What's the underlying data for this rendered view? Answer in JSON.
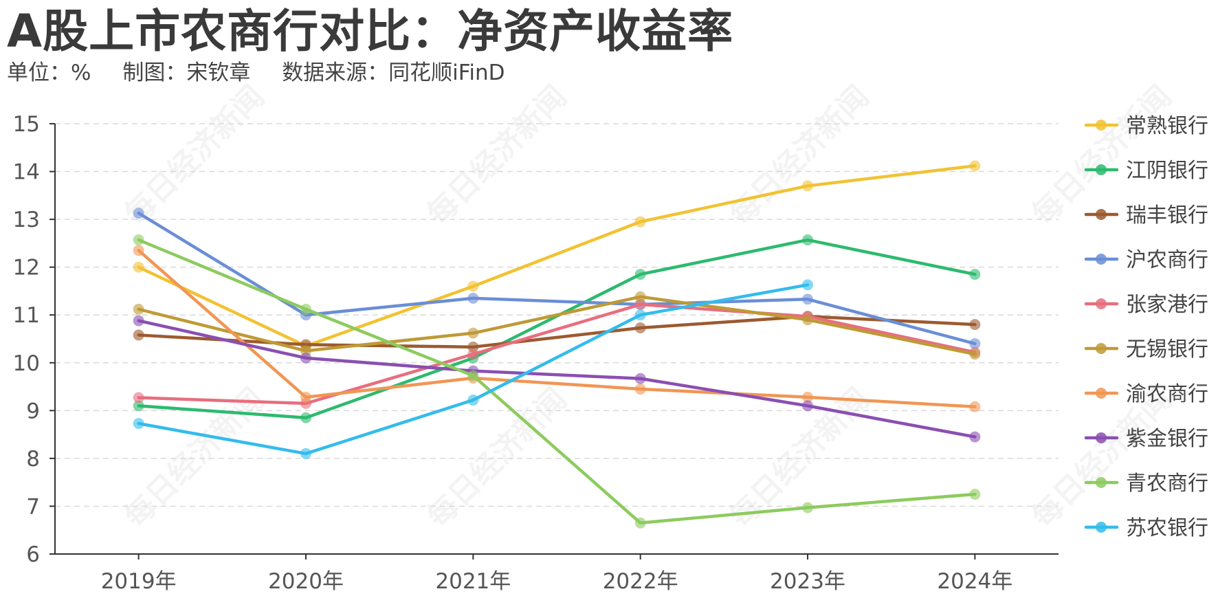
{
  "header": {
    "title": "A股上市农商行对比：净资产收益率",
    "unit": "单位：%",
    "author": "制图：宋钦章",
    "source": "数据来源：同花顺iFinD"
  },
  "watermark_text": "每日经济新闻",
  "chart_data": {
    "type": "line",
    "title": "A股上市农商行对比：净资产收益率",
    "xlabel": "",
    "ylabel": "",
    "categories": [
      "2019年",
      "2020年",
      "2021年",
      "2022年",
      "2023年",
      "2024年"
    ],
    "ylim": [
      6,
      15
    ],
    "yticks": [
      6,
      7,
      8,
      9,
      10,
      11,
      12,
      13,
      14,
      15
    ],
    "grid": true,
    "legend_position": "right",
    "series": [
      {
        "name": "常熟银行",
        "color": "#f2c232",
        "values": [
          12.0,
          10.35,
          11.6,
          12.95,
          13.7,
          14.12
        ]
      },
      {
        "name": "江阴银行",
        "color": "#2dba6e",
        "values": [
          9.1,
          8.85,
          10.1,
          11.85,
          12.57,
          11.85
        ]
      },
      {
        "name": "瑞丰银行",
        "color": "#9c5a2f",
        "values": [
          10.58,
          10.38,
          10.33,
          10.73,
          10.97,
          10.8
        ]
      },
      {
        "name": "沪农商行",
        "color": "#6a8ed6",
        "values": [
          13.13,
          11.0,
          11.35,
          11.22,
          11.33,
          10.4
        ]
      },
      {
        "name": "张家港行",
        "color": "#e86e7e",
        "values": [
          9.27,
          9.15,
          10.18,
          11.22,
          10.97,
          10.22
        ]
      },
      {
        "name": "无锡银行",
        "color": "#bf9a35",
        "values": [
          11.12,
          10.25,
          10.62,
          11.38,
          10.9,
          10.18
        ]
      },
      {
        "name": "渝农商行",
        "color": "#f19654",
        "values": [
          12.35,
          9.28,
          9.68,
          9.45,
          9.28,
          9.08
        ]
      },
      {
        "name": "紫金银行",
        "color": "#8a4fb2",
        "values": [
          10.88,
          10.1,
          9.83,
          9.67,
          9.1,
          8.45
        ]
      },
      {
        "name": "青农商行",
        "color": "#8ccb5e",
        "values": [
          12.57,
          11.12,
          9.73,
          6.65,
          6.97,
          7.25
        ]
      },
      {
        "name": "苏农银行",
        "color": "#33bcec",
        "values": [
          8.73,
          8.1,
          9.22,
          11.0,
          11.63,
          null
        ]
      }
    ]
  }
}
